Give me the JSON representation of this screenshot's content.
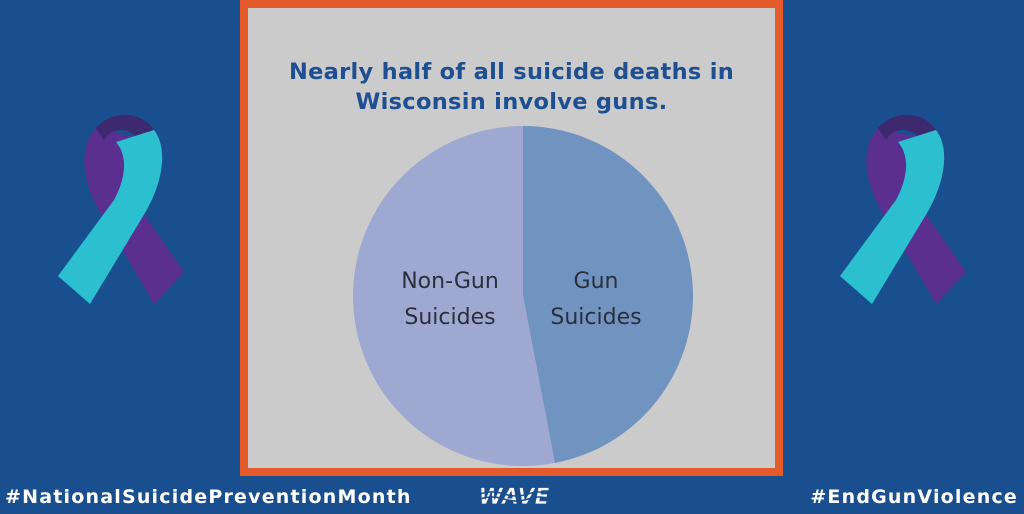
{
  "card": {
    "title_line1": "Nearly half of all suicide deaths in",
    "title_line2": "Wisconsin involve guns."
  },
  "footer": {
    "left_hashtag": "#NationalSuicidePreventionMonth",
    "right_hashtag": "#EndGunViolence",
    "logo_text": "WAVE"
  },
  "colors": {
    "background": "#1a4f8f",
    "frame": "#e35a2d",
    "card": "#cbcbcb",
    "gun_slice": "#7093c0",
    "non_gun_slice": "#9ea8d1",
    "ribbon_teal": "#2bbfcf",
    "ribbon_purple": "#5a2f8f"
  },
  "icons": [
    "awareness-ribbon-icon",
    "wave-logo-icon"
  ],
  "chart_data": {
    "type": "pie",
    "title": "Nearly half of all suicide deaths in Wisconsin involve guns.",
    "slices": [
      {
        "label_line1": "Gun",
        "label_line2": "Suicides",
        "value": 47,
        "color": "#7093c0"
      },
      {
        "label_line1": "Non-Gun",
        "label_line2": "Suicides",
        "value": 53,
        "color": "#9ea8d1"
      }
    ],
    "start_angle_deg": 0,
    "direction": "clockwise",
    "legend": "none"
  }
}
